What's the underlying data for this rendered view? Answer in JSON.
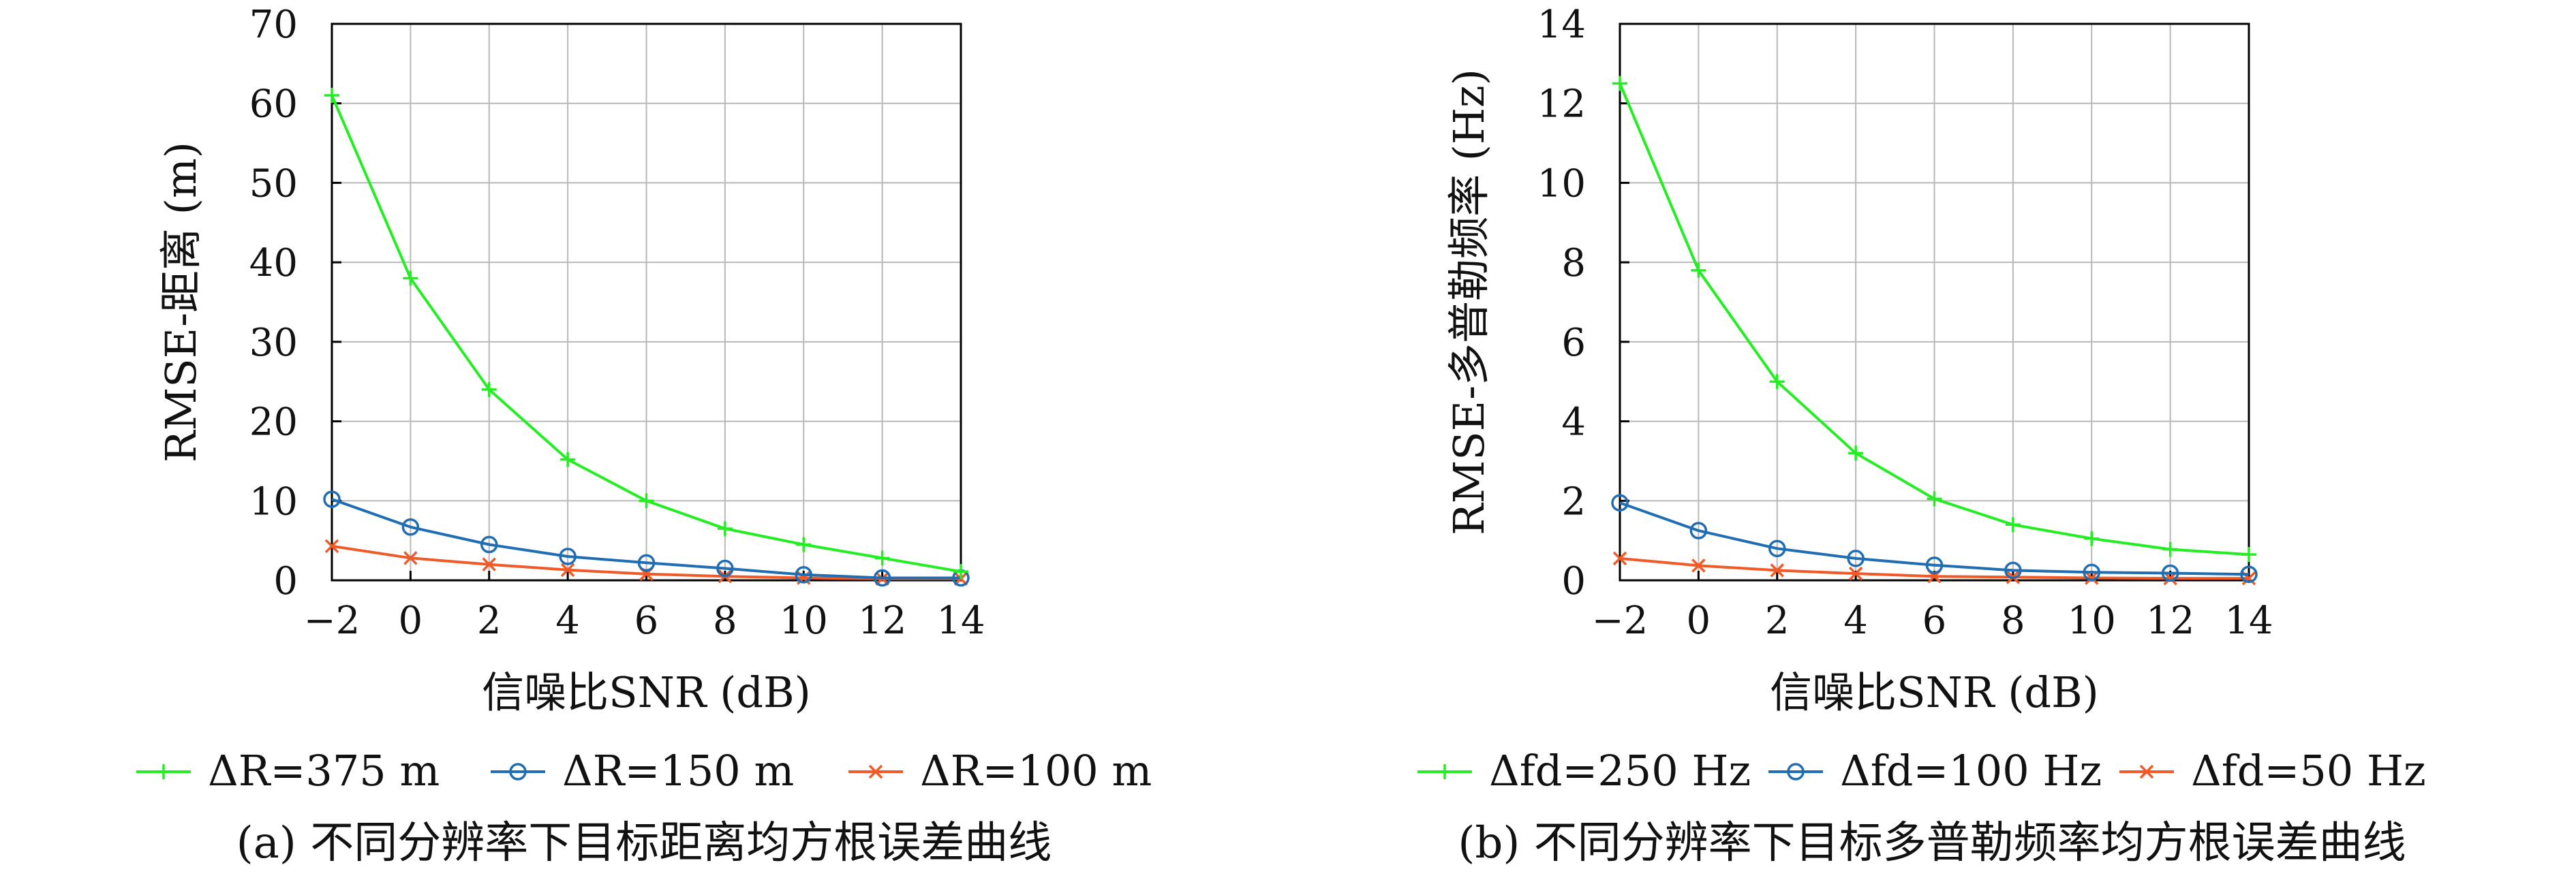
{
  "chart_data": [
    {
      "type": "line",
      "xlabel": "信噪比SNR (dB)",
      "ylabel": "RMSE-距离 (m)",
      "caption": "(a) 不同分辨率下目标距离均方根误差曲线",
      "xlim": [
        -2,
        14
      ],
      "ylim": [
        0,
        70
      ],
      "xticks": [
        -2,
        0,
        2,
        4,
        6,
        8,
        10,
        12,
        14
      ],
      "xtick_labels": [
        "−2",
        "0",
        "2",
        "4",
        "6",
        "8",
        "10",
        "12",
        "14"
      ],
      "yticks": [
        0,
        10,
        20,
        30,
        40,
        50,
        60,
        70
      ],
      "grid": true,
      "legend_position": "bottom",
      "x": [
        -2,
        0,
        2,
        4,
        6,
        8,
        10,
        12,
        14
      ],
      "series": [
        {
          "name": "ΔR=375 m",
          "color": "#22ee22",
          "marker": "plus",
          "values": [
            61,
            38,
            24,
            15.2,
            10,
            6.5,
            4.5,
            2.8,
            1.1
          ]
        },
        {
          "name": "ΔR=150 m",
          "color": "#1f6eb4",
          "marker": "circle",
          "values": [
            10.2,
            6.7,
            4.5,
            3.0,
            2.2,
            1.5,
            0.7,
            0.3,
            0.3
          ]
        },
        {
          "name": "ΔR=100 m",
          "color": "#f05a28",
          "marker": "x",
          "values": [
            4.3,
            2.8,
            2.0,
            1.3,
            0.8,
            0.5,
            0.3,
            0.2,
            0.2
          ]
        }
      ]
    },
    {
      "type": "line",
      "xlabel": "信噪比SNR (dB)",
      "ylabel": "RMSE-多普勒频率 (Hz)",
      "caption": "(b) 不同分辨率下目标多普勒频率均方根误差曲线",
      "xlim": [
        -2,
        14
      ],
      "ylim": [
        0,
        14
      ],
      "xticks": [
        -2,
        0,
        2,
        4,
        6,
        8,
        10,
        12,
        14
      ],
      "xtick_labels": [
        "−2",
        "0",
        "2",
        "4",
        "6",
        "8",
        "10",
        "12",
        "14"
      ],
      "yticks": [
        0,
        2,
        4,
        6,
        8,
        10,
        12,
        14
      ],
      "grid": true,
      "legend_position": "bottom",
      "x": [
        -2,
        0,
        2,
        4,
        6,
        8,
        10,
        12,
        14
      ],
      "series": [
        {
          "name": "Δfd=250 Hz",
          "color": "#22ee22",
          "marker": "plus",
          "values": [
            12.5,
            7.8,
            5.0,
            3.2,
            2.05,
            1.4,
            1.05,
            0.78,
            0.65
          ]
        },
        {
          "name": "Δfd=100 Hz",
          "color": "#1f6eb4",
          "marker": "circle",
          "values": [
            1.95,
            1.25,
            0.8,
            0.55,
            0.38,
            0.25,
            0.2,
            0.18,
            0.15
          ]
        },
        {
          "name": "Δfd=50 Hz",
          "color": "#f05a28",
          "marker": "x",
          "values": [
            0.55,
            0.37,
            0.25,
            0.17,
            0.1,
            0.08,
            0.06,
            0.05,
            0.05
          ]
        }
      ]
    }
  ]
}
